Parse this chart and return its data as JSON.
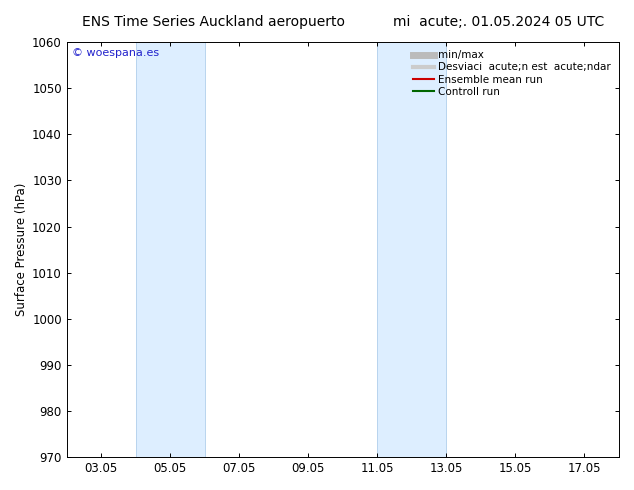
{
  "title_left": "ENS Time Series Auckland aeropuerto",
  "title_right": "mi  acute;. 01.05.2024 05 UTC",
  "ylabel": "Surface Pressure (hPa)",
  "ylim": [
    970,
    1060
  ],
  "yticks": [
    970,
    980,
    990,
    1000,
    1010,
    1020,
    1030,
    1040,
    1050,
    1060
  ],
  "xtick_labels": [
    "03.05",
    "05.05",
    "07.05",
    "09.05",
    "11.05",
    "13.05",
    "15.05",
    "17.05"
  ],
  "xtick_positions": [
    3,
    5,
    7,
    9,
    11,
    13,
    15,
    17
  ],
  "xmin": 2.0,
  "xmax": 18.0,
  "shade_bands": [
    {
      "xmin": 4.0,
      "xmax": 6.0
    },
    {
      "xmin": 11.0,
      "xmax": 13.0
    }
  ],
  "shade_color": "#ddeeff",
  "shade_edge_color": "#b8d4ee",
  "watermark": "© woespana.es",
  "legend_entries": [
    {
      "label": "min/max",
      "color": "#bbbbbb",
      "lw": 5
    },
    {
      "label": "Desviaci  acute;n est  acute;ndar",
      "color": "#cccccc",
      "lw": 3
    },
    {
      "label": "Ensemble mean run",
      "color": "#cc0000",
      "lw": 1.5
    },
    {
      "label": "Controll run",
      "color": "#006600",
      "lw": 1.5
    }
  ],
  "bg_color": "#ffffff",
  "title_fontsize": 10,
  "tick_fontsize": 8.5,
  "ylabel_fontsize": 8.5,
  "legend_fontsize": 7.5
}
